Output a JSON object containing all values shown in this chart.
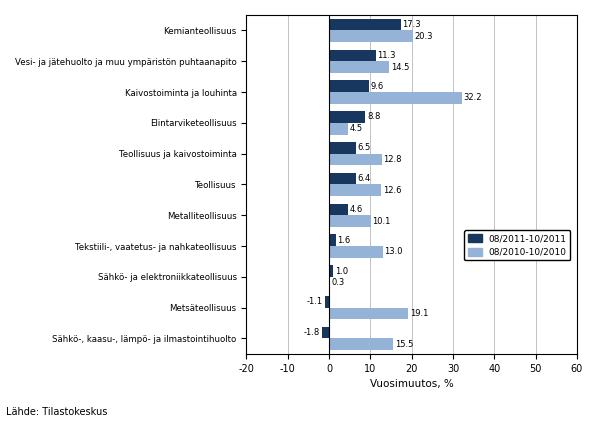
{
  "categories": [
    "Kemianteollisuus",
    "Vesi- ja jätehuolto ja muu ympäristön puhtaanapito",
    "Kaivostoiminta ja louhinta",
    "Elintarviketeollisuus",
    "Teollisuus ja kaivostoiminta",
    "Teollisuus",
    "Metalliteollisuus",
    "Tekstiili-, vaatetus- ja nahkateollisuus",
    "Sähkö- ja elektroniikkateollisuus",
    "Metsäteollisuus",
    "Sähkö-, kaasu-, lämpö- ja ilmastointihuolto"
  ],
  "series1_label": "08/2011-10/2011",
  "series2_label": "08/2010-10/2010",
  "series1_values": [
    17.3,
    11.3,
    9.6,
    8.8,
    6.5,
    6.4,
    4.6,
    1.6,
    1.0,
    -1.1,
    -1.8
  ],
  "series2_values": [
    20.3,
    14.5,
    32.2,
    4.5,
    12.8,
    12.6,
    10.1,
    13.0,
    0.3,
    19.1,
    15.5
  ],
  "series1_color": "#17375e",
  "series2_color": "#95b3d7",
  "xlabel": "Vuosimuutos, %",
  "xlim": [
    -20,
    60
  ],
  "xticks": [
    -20,
    -10,
    0,
    10,
    20,
    30,
    40,
    50,
    60
  ],
  "source": "Lähde: Tilastokeskus",
  "bar_height": 0.38
}
